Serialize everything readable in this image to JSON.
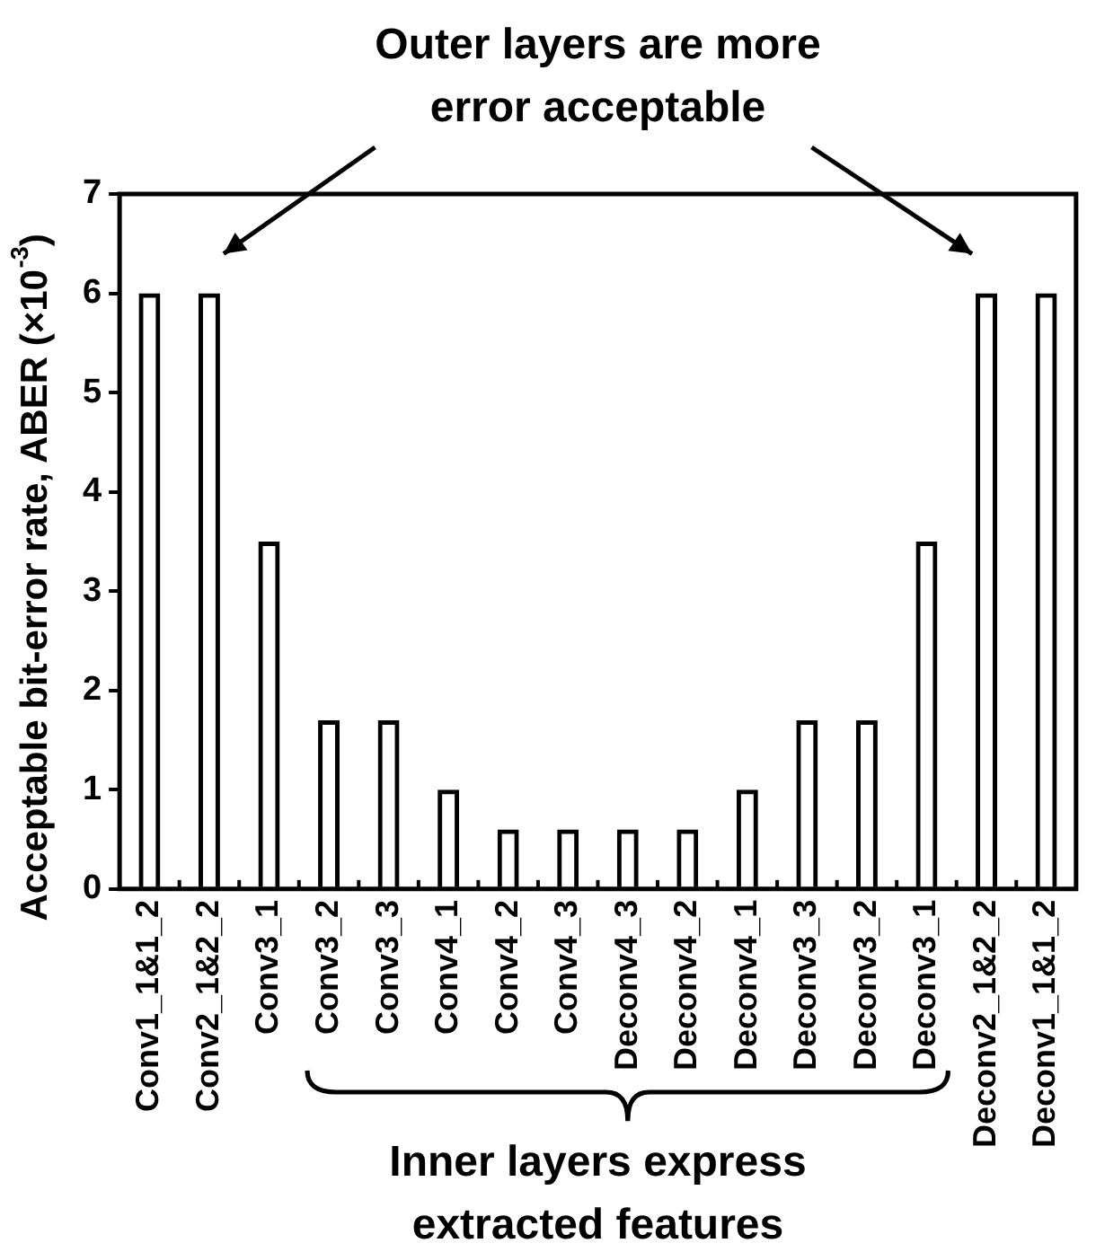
{
  "chart_data": {
    "type": "bar",
    "ylabel": "Acceptable bit-error rate, ABER (×10$^{-3}$)",
    "categories": [
      "Conv1_1&1_2",
      "Conv2_1&2_2",
      "Conv3_1",
      "Conv3_2",
      "Conv3_3",
      "Conv4_1",
      "Conv4_2",
      "Conv4_3",
      "Deconv4_3",
      "Deconv4_2",
      "Deconv4_1",
      "Deconv3_3",
      "Deconv3_2",
      "Deconv3_1",
      "Deconv2_1&2_2",
      "Deconv1_1&1_2"
    ],
    "values": [
      6,
      6,
      3.5,
      1.7,
      1.7,
      1,
      0.6,
      0.6,
      0.6,
      0.6,
      1,
      1.7,
      1.7,
      3.5,
      6,
      6
    ],
    "color": "#000000",
    "ylim": [
      0,
      7
    ],
    "yticks": [
      0,
      1,
      2,
      3,
      4,
      5,
      6,
      7
    ],
    "annotations": [
      "Outer layers are more error acceptable",
      "Inner layers express extracted features"
    ],
    "legend": false,
    "grid": false
  }
}
